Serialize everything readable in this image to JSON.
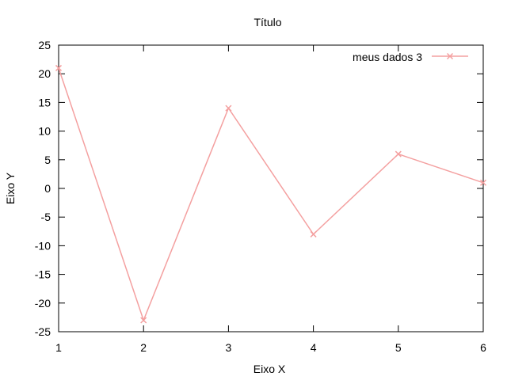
{
  "chart_data": {
    "type": "line",
    "title": "Título",
    "xlabel": "Eixo X",
    "ylabel": "Eixo Y",
    "xlim": [
      1,
      6
    ],
    "ylim": [
      -25,
      25
    ],
    "xticks": [
      1,
      2,
      3,
      4,
      5,
      6
    ],
    "yticks": [
      25,
      20,
      15,
      10,
      5,
      0,
      -5,
      -10,
      -15,
      -20,
      -25
    ],
    "grid": false,
    "legend_position": "top-right",
    "series": [
      {
        "name": "meus dados 3",
        "color": "#f4a0a0",
        "marker": "x",
        "x": [
          1,
          2,
          3,
          4,
          5,
          6
        ],
        "y": [
          21,
          -23,
          14,
          -8,
          6,
          1
        ]
      }
    ]
  }
}
